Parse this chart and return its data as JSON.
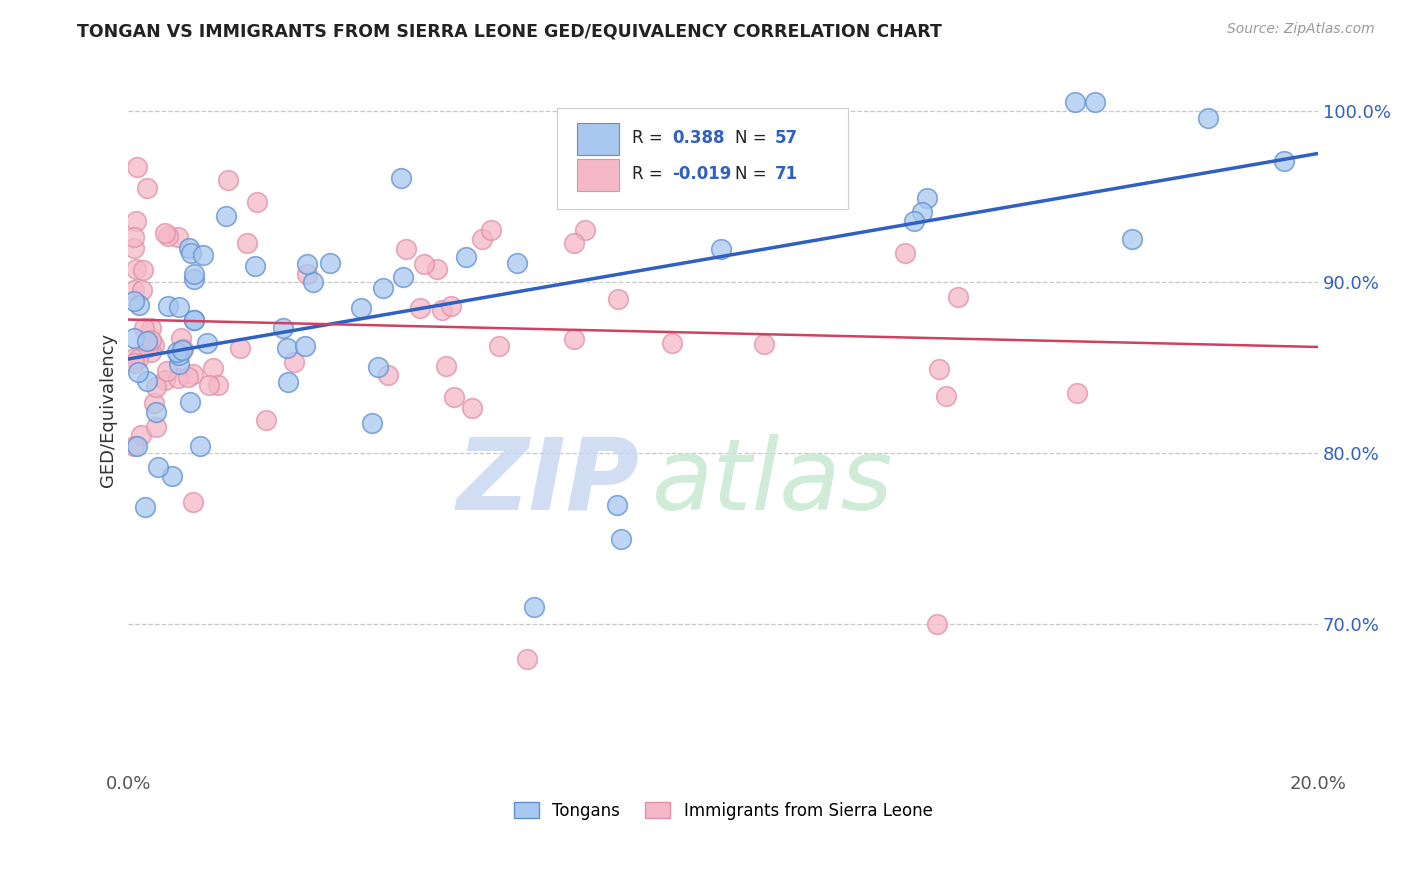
{
  "title": "TONGAN VS IMMIGRANTS FROM SIERRA LEONE GED/EQUIVALENCY CORRELATION CHART",
  "source": "Source: ZipAtlas.com",
  "ylabel": "GED/Equivalency",
  "y_tick_vals": [
    0.7,
    0.8,
    0.9,
    1.0
  ],
  "x_lim": [
    0.0,
    0.2
  ],
  "y_lim": [
    0.615,
    1.035
  ],
  "legend_label1": "Tongans",
  "legend_label2": "Immigrants from Sierra Leone",
  "R1": 0.388,
  "N1": 57,
  "R2": -0.019,
  "N2": 71,
  "color_blue": "#a8c8f0",
  "color_pink": "#f4b8c8",
  "color_blue_line": "#3060c0",
  "color_pink_line": "#d04060",
  "blue_trend": [
    0.0,
    0.2,
    0.855,
    0.975
  ],
  "pink_trend": [
    0.0,
    0.2,
    0.878,
    0.862
  ],
  "watermark_zip_color": "#c8d8f0",
  "watermark_atlas_color": "#c8e8d0"
}
